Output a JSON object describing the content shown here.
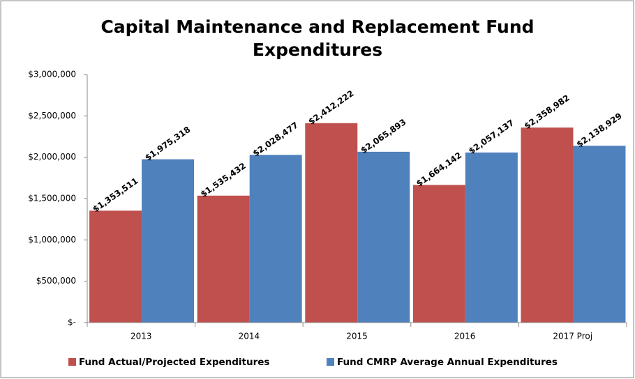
{
  "chart_data": {
    "type": "bar",
    "title": [
      "Capital Maintenance and Replacement Fund",
      "Expenditures"
    ],
    "categories": [
      "2013",
      "2014",
      "2015",
      "2016",
      "2017 Proj"
    ],
    "series": [
      {
        "name": "Fund Actual/Projected Expenditures",
        "color": "#c0504d",
        "values": [
          1353511,
          1535432,
          2412222,
          1664142,
          2358982
        ],
        "value_labels": [
          "$1,353,511",
          "$1,535,432",
          "$2,412,222",
          "$1,664,142",
          "$2,358,982"
        ]
      },
      {
        "name": "Fund CMRP Average Annual Expenditures",
        "color": "#4f81bd",
        "values": [
          1975318,
          2028477,
          2065893,
          2057137,
          2138929
        ],
        "value_labels": [
          "$1,975,318",
          "$2,028,477",
          "$2,065,893",
          "$2,057,137",
          "$2,138,929"
        ]
      }
    ],
    "ylim": [
      0,
      3000000
    ],
    "yticks": [
      {
        "value": 0,
        "label": "$-"
      },
      {
        "value": 500000,
        "label": "$500,000"
      },
      {
        "value": 1000000,
        "label": "$1,000,000"
      },
      {
        "value": 1500000,
        "label": "$1,500,000"
      },
      {
        "value": 2000000,
        "label": "$2,000,000"
      },
      {
        "value": 2500000,
        "label": "$2,500,000"
      },
      {
        "value": 3000000,
        "label": "$3,000,000"
      }
    ],
    "grid": false,
    "legend": "bottom"
  }
}
